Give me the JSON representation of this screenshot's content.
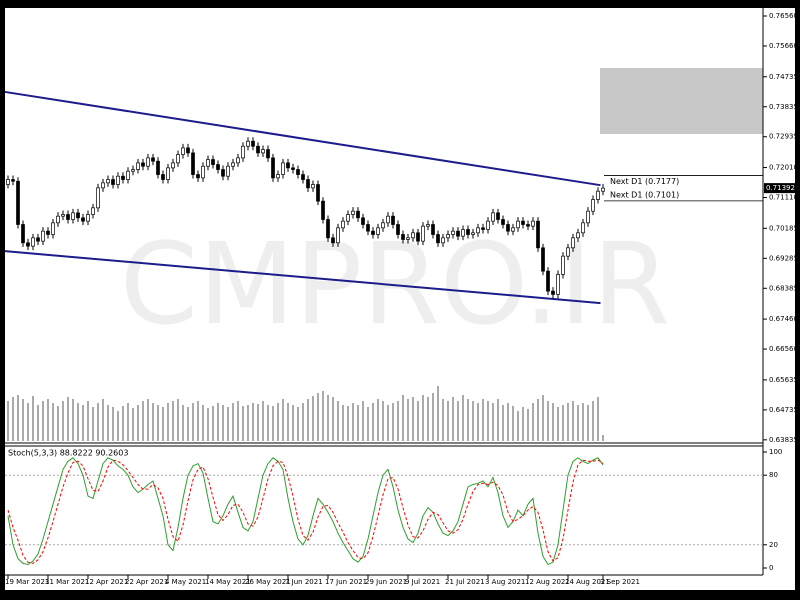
{
  "chart_data": [
    {
      "type": "candlestick",
      "watermark": "CMPRO.IR",
      "categories": [
        "19 Mar 2021",
        null,
        null,
        null,
        null,
        null,
        null,
        null,
        "31 Mar 2021",
        null,
        null,
        null,
        null,
        null,
        null,
        null,
        "12 Apr 2021",
        null,
        null,
        null,
        null,
        null,
        null,
        null,
        "22 Apr 2021",
        null,
        null,
        null,
        null,
        null,
        null,
        null,
        "4 May 2021",
        null,
        null,
        null,
        null,
        null,
        null,
        null,
        "14 May 2021",
        null,
        null,
        null,
        null,
        null,
        null,
        null,
        "26 May 2021",
        null,
        null,
        null,
        null,
        null,
        null,
        null,
        "7 Jun 2021",
        null,
        null,
        null,
        null,
        null,
        null,
        null,
        "17 Jun 2021",
        null,
        null,
        null,
        null,
        null,
        null,
        null,
        "29 Jun 2021",
        null,
        null,
        null,
        null,
        null,
        null,
        null,
        "9 Jul 2021",
        null,
        null,
        null,
        null,
        null,
        null,
        null,
        "21 Jul 2021",
        null,
        null,
        null,
        null,
        null,
        null,
        null,
        "3 Aug 2021",
        null,
        null,
        null,
        null,
        null,
        null,
        null,
        "12 Aug 2021",
        null,
        null,
        null,
        null,
        null,
        null,
        null,
        "24 Aug 2021",
        null,
        null,
        null,
        null,
        null,
        null,
        "3 Sep 2021"
      ],
      "candles": [
        [
          0.715,
          0.7177,
          0.7138,
          0.7165
        ],
        [
          0.7165,
          0.7177,
          0.7148,
          0.716
        ],
        [
          0.716,
          0.7172,
          0.7018,
          0.703
        ],
        [
          0.703,
          0.7042,
          0.6963,
          0.6975
        ],
        [
          0.6975,
          0.6987,
          0.6953,
          0.6965
        ],
        [
          0.6965,
          0.7002,
          0.6953,
          0.699
        ],
        [
          0.699,
          0.7002,
          0.6968,
          0.698
        ],
        [
          0.698,
          0.7022,
          0.6968,
          0.701
        ],
        [
          0.701,
          0.7022,
          0.6988,
          0.7
        ],
        [
          0.7,
          0.7047,
          0.6988,
          0.7035
        ],
        [
          0.7035,
          0.7067,
          0.7023,
          0.7055
        ],
        [
          0.7055,
          0.7072,
          0.7043,
          0.706
        ],
        [
          0.706,
          0.7072,
          0.7033,
          0.7045
        ],
        [
          0.7045,
          0.7077,
          0.7033,
          0.7065
        ],
        [
          0.7065,
          0.7077,
          0.7038,
          0.705
        ],
        [
          0.705,
          0.7062,
          0.7028,
          0.704
        ],
        [
          0.704,
          0.7072,
          0.7028,
          0.706
        ],
        [
          0.706,
          0.7092,
          0.7048,
          0.708
        ],
        [
          0.708,
          0.7152,
          0.7068,
          0.714
        ],
        [
          0.714,
          0.7167,
          0.7128,
          0.7155
        ],
        [
          0.7155,
          0.7177,
          0.7143,
          0.7165
        ],
        [
          0.7165,
          0.7177,
          0.7138,
          0.715
        ],
        [
          0.715,
          0.7187,
          0.7138,
          0.7175
        ],
        [
          0.7175,
          0.7187,
          0.7153,
          0.7165
        ],
        [
          0.7165,
          0.7202,
          0.7153,
          0.719
        ],
        [
          0.719,
          0.7207,
          0.7178,
          0.7195
        ],
        [
          0.7195,
          0.7227,
          0.7183,
          0.7215
        ],
        [
          0.7215,
          0.7227,
          0.7193,
          0.7205
        ],
        [
          0.7205,
          0.7242,
          0.7193,
          0.723
        ],
        [
          0.723,
          0.7242,
          0.7208,
          0.722
        ],
        [
          0.722,
          0.7232,
          0.7168,
          0.718
        ],
        [
          0.718,
          0.7192,
          0.7153,
          0.7165
        ],
        [
          0.7165,
          0.7212,
          0.7153,
          0.72
        ],
        [
          0.72,
          0.7227,
          0.7188,
          0.7215
        ],
        [
          0.7215,
          0.7252,
          0.7203,
          0.724
        ],
        [
          0.724,
          0.7272,
          0.7228,
          0.726
        ],
        [
          0.726,
          0.7272,
          0.7233,
          0.7245
        ],
        [
          0.7245,
          0.7257,
          0.7168,
          0.718
        ],
        [
          0.718,
          0.7192,
          0.7158,
          0.717
        ],
        [
          0.717,
          0.7217,
          0.7158,
          0.7205
        ],
        [
          0.7205,
          0.7237,
          0.7193,
          0.7225
        ],
        [
          0.7225,
          0.7237,
          0.7198,
          0.721
        ],
        [
          0.721,
          0.7222,
          0.7183,
          0.7195
        ],
        [
          0.7195,
          0.7207,
          0.7163,
          0.7175
        ],
        [
          0.7175,
          0.7217,
          0.7163,
          0.7205
        ],
        [
          0.7205,
          0.7227,
          0.7193,
          0.7215
        ],
        [
          0.7215,
          0.7242,
          0.7203,
          0.723
        ],
        [
          0.723,
          0.7277,
          0.7218,
          0.7265
        ],
        [
          0.7265,
          0.7292,
          0.7253,
          0.728
        ],
        [
          0.728,
          0.7292,
          0.7253,
          0.7265
        ],
        [
          0.7265,
          0.7277,
          0.7233,
          0.7245
        ],
        [
          0.7245,
          0.7267,
          0.7233,
          0.7255
        ],
        [
          0.7255,
          0.7267,
          0.7218,
          0.723
        ],
        [
          0.723,
          0.7242,
          0.7158,
          0.717
        ],
        [
          0.717,
          0.7192,
          0.7158,
          0.718
        ],
        [
          0.718,
          0.7227,
          0.7168,
          0.7215
        ],
        [
          0.7215,
          0.7227,
          0.7188,
          0.72
        ],
        [
          0.72,
          0.7212,
          0.7183,
          0.7195
        ],
        [
          0.7195,
          0.7207,
          0.7168,
          0.718
        ],
        [
          0.718,
          0.7192,
          0.7153,
          0.7165
        ],
        [
          0.7165,
          0.7177,
          0.7128,
          0.714
        ],
        [
          0.714,
          0.7162,
          0.7128,
          0.715
        ],
        [
          0.715,
          0.7162,
          0.7088,
          0.71
        ],
        [
          0.71,
          0.7112,
          0.7033,
          0.7045
        ],
        [
          0.7045,
          0.7057,
          0.6978,
          0.699
        ],
        [
          0.699,
          0.7002,
          0.6963,
          0.6975
        ],
        [
          0.6975,
          0.7032,
          0.6963,
          0.702
        ],
        [
          0.702,
          0.7052,
          0.7008,
          0.704
        ],
        [
          0.704,
          0.7072,
          0.7028,
          0.706
        ],
        [
          0.706,
          0.7082,
          0.7048,
          0.707
        ],
        [
          0.707,
          0.7082,
          0.7038,
          0.705
        ],
        [
          0.705,
          0.7062,
          0.7018,
          0.703
        ],
        [
          0.703,
          0.7042,
          0.6998,
          0.701
        ],
        [
          0.701,
          0.7022,
          0.6988,
          0.7
        ],
        [
          0.7,
          0.7032,
          0.6988,
          0.702
        ],
        [
          0.702,
          0.7047,
          0.7008,
          0.7035
        ],
        [
          0.7035,
          0.7067,
          0.7023,
          0.7055
        ],
        [
          0.7055,
          0.7067,
          0.7018,
          0.703
        ],
        [
          0.703,
          0.7042,
          0.6988,
          0.7
        ],
        [
          0.7,
          0.7012,
          0.6973,
          0.6985
        ],
        [
          0.6985,
          0.7002,
          0.6973,
          0.699
        ],
        [
          0.699,
          0.7017,
          0.6978,
          0.7005
        ],
        [
          0.7005,
          0.7017,
          0.6968,
          0.698
        ],
        [
          0.698,
          0.7037,
          0.6968,
          0.7025
        ],
        [
          0.7025,
          0.7042,
          0.7013,
          0.703
        ],
        [
          0.703,
          0.7042,
          0.6988,
          0.7
        ],
        [
          0.7,
          0.7012,
          0.6963,
          0.6975
        ],
        [
          0.6975,
          0.7002,
          0.6963,
          0.699
        ],
        [
          0.699,
          0.7012,
          0.6978,
          0.7
        ],
        [
          0.7,
          0.7022,
          0.6988,
          0.701
        ],
        [
          0.701,
          0.7022,
          0.6983,
          0.6995
        ],
        [
          0.6995,
          0.7027,
          0.6983,
          0.7015
        ],
        [
          0.7015,
          0.7027,
          0.6988,
          0.7
        ],
        [
          0.7,
          0.7017,
          0.6988,
          0.7005
        ],
        [
          0.7005,
          0.7032,
          0.6993,
          0.702
        ],
        [
          0.702,
          0.7032,
          0.7003,
          0.7015
        ],
        [
          0.7015,
          0.7052,
          0.7003,
          0.704
        ],
        [
          0.704,
          0.7077,
          0.7028,
          0.7065
        ],
        [
          0.7065,
          0.7077,
          0.7033,
          0.7045
        ],
        [
          0.7045,
          0.7057,
          0.7018,
          0.703
        ],
        [
          0.703,
          0.7042,
          0.6998,
          0.701
        ],
        [
          0.701,
          0.7032,
          0.6998,
          0.702
        ],
        [
          0.702,
          0.7052,
          0.7008,
          0.704
        ],
        [
          0.704,
          0.7052,
          0.7018,
          0.703
        ],
        [
          0.703,
          0.7042,
          0.7013,
          0.7025
        ],
        [
          0.7025,
          0.7052,
          0.7013,
          0.704
        ],
        [
          0.704,
          0.7052,
          0.6948,
          0.696
        ],
        [
          0.696,
          0.6972,
          0.6878,
          0.689
        ],
        [
          0.689,
          0.6902,
          0.6818,
          0.683
        ],
        [
          0.683,
          0.6842,
          0.6808,
          0.682
        ],
        [
          0.682,
          0.6892,
          0.6808,
          0.688
        ],
        [
          0.688,
          0.6947,
          0.6868,
          0.6935
        ],
        [
          0.6935,
          0.6972,
          0.6923,
          0.696
        ],
        [
          0.696,
          0.7002,
          0.6948,
          0.699
        ],
        [
          0.699,
          0.7017,
          0.6978,
          0.7005
        ],
        [
          0.7005,
          0.7047,
          0.6993,
          0.7035
        ],
        [
          0.7035,
          0.7082,
          0.7023,
          0.707
        ],
        [
          0.707,
          0.7117,
          0.7058,
          0.7105
        ],
        [
          0.7105,
          0.7142,
          0.7093,
          0.713
        ],
        [
          0.713,
          0.7152,
          0.7118,
          0.71392
        ]
      ],
      "volume": [
        40,
        44,
        46,
        42,
        38,
        45,
        36,
        40,
        42,
        38,
        35,
        40,
        44,
        42,
        38,
        36,
        40,
        34,
        38,
        42,
        36,
        34,
        30,
        35,
        38,
        33,
        36,
        40,
        42,
        38,
        36,
        34,
        38,
        40,
        42,
        36,
        34,
        38,
        40,
        36,
        33,
        35,
        38,
        36,
        34,
        38,
        40,
        35,
        36,
        38,
        37,
        40,
        36,
        35,
        38,
        42,
        38,
        36,
        34,
        38,
        42,
        45,
        48,
        50,
        46,
        44,
        40,
        36,
        35,
        38,
        36,
        40,
        34,
        38,
        42,
        40,
        36,
        38,
        40,
        46,
        42,
        44,
        40,
        46,
        44,
        48,
        55,
        42,
        40,
        44,
        40,
        46,
        42,
        40,
        38,
        42,
        40,
        38,
        42,
        36,
        38,
        35,
        30,
        34,
        32,
        38,
        42,
        46,
        40,
        38,
        34,
        36,
        38,
        40,
        36,
        38,
        36,
        40,
        44,
        6
      ],
      "ylim": [
        0.6377,
        0.768
      ],
      "yticks": [
        {
          "value": 0.7656,
          "label": "0.76560"
        },
        {
          "value": 0.7566,
          "label": "0.75660"
        },
        0.74735,
        0.73835,
        0.72935,
        {
          "value": 0.7201,
          "label": "0.72010"
        },
        {
          "value": 0.7111,
          "label": "0.71110"
        },
        0.70185,
        0.69285,
        0.68385,
        {
          "value": 0.6746,
          "label": "0.67460"
        },
        {
          "value": 0.6656,
          "label": "0.66560"
        },
        0.65635,
        0.64735,
        0.63835
      ],
      "up_color": "#ffffff",
      "down_color": "#000000",
      "trendlines": [
        {
          "color": "#1c1c8c",
          "values": [
            0.7428,
            0.7148
          ]
        },
        {
          "color": "#1c1c8c",
          "values": [
            0.695,
            0.6794
          ]
        }
      ],
      "levels": [
        {
          "label": "Next D1 (0.7177)",
          "value": 0.7177
        },
        {
          "label": "Next D1 (0.7101)",
          "value": 0.7101
        }
      ],
      "last_price": 0.71392
    },
    {
      "type": "line",
      "title": "Stoch(5,3,3) 88.8222 90.2603",
      "series": [
        {
          "color": "#2e9e2e",
          "values": [
            45,
            20,
            8,
            4,
            3,
            6,
            12,
            25,
            40,
            55,
            70,
            85,
            92,
            95,
            90,
            80,
            62,
            60,
            75,
            90,
            95,
            93,
            88,
            85,
            80,
            70,
            65,
            68,
            72,
            75,
            60,
            45,
            20,
            15,
            35,
            60,
            80,
            88,
            90,
            82,
            60,
            40,
            38,
            45,
            55,
            62,
            48,
            35,
            32,
            40,
            60,
            80,
            90,
            95,
            92,
            85,
            60,
            40,
            25,
            20,
            28,
            45,
            60,
            55,
            48,
            40,
            30,
            22,
            15,
            8,
            5,
            10,
            25,
            45,
            65,
            80,
            85,
            70,
            50,
            35,
            25,
            22,
            30,
            45,
            52,
            48,
            38,
            30,
            28,
            32,
            40,
            55,
            70,
            72,
            73,
            75,
            70,
            78,
            65,
            45,
            35,
            40,
            50,
            45,
            55,
            60,
            30,
            10,
            3,
            5,
            20,
            50,
            80,
            92,
            95,
            92,
            90,
            93,
            95,
            88.8222
          ]
        },
        {
          "color": "#ff0000",
          "dash": true,
          "values": [
            50,
            35,
            24,
            11,
            5,
            4,
            7,
            14,
            26,
            40,
            55,
            70,
            82,
            91,
            92,
            88,
            77,
            67,
            66,
            75,
            87,
            93,
            92,
            89,
            84,
            78,
            72,
            68,
            68,
            72,
            69,
            60,
            42,
            27,
            23,
            37,
            58,
            76,
            85,
            87,
            77,
            61,
            46,
            41,
            46,
            54,
            55,
            48,
            38,
            36,
            44,
            60,
            77,
            88,
            92,
            91,
            79,
            62,
            42,
            28,
            24,
            31,
            44,
            53,
            54,
            48,
            39,
            31,
            22,
            15,
            9,
            8,
            13,
            27,
            45,
            63,
            77,
            78,
            68,
            52,
            37,
            27,
            26,
            32,
            42,
            48,
            46,
            39,
            32,
            30,
            33,
            42,
            55,
            66,
            72,
            73,
            72,
            74,
            71,
            63,
            48,
            40,
            42,
            45,
            50,
            53,
            48,
            33,
            14,
            6,
            9,
            25,
            50,
            74,
            89,
            93,
            92,
            92,
            93,
            90.2603
          ]
        }
      ],
      "ylim": [
        0,
        100
      ],
      "yticks": [
        100,
        80,
        20,
        0
      ],
      "levels": [
        80,
        20
      ]
    }
  ]
}
